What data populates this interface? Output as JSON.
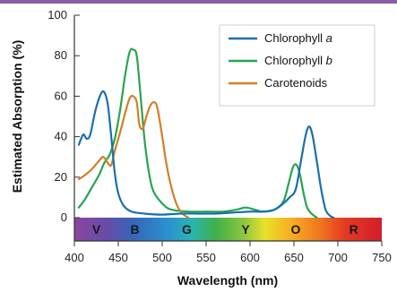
{
  "chart_data": {
    "type": "line",
    "title": "",
    "xlabel": "Wavelength (nm)",
    "ylabel": "Estimated Absorption (%)",
    "xlim": [
      400,
      750
    ],
    "ylim": [
      0,
      100
    ],
    "x_ticks": [
      400,
      450,
      500,
      550,
      600,
      650,
      700,
      750
    ],
    "y_ticks": [
      0,
      20,
      40,
      60,
      80,
      100
    ],
    "grid": false,
    "legend_position": "top-right",
    "spectrum_letters": [
      {
        "letter": "V",
        "nm": 425
      },
      {
        "letter": "B",
        "nm": 469
      },
      {
        "letter": "G",
        "nm": 528
      },
      {
        "letter": "Y",
        "nm": 595
      },
      {
        "letter": "O",
        "nm": 652
      },
      {
        "letter": "R",
        "nm": 718
      }
    ],
    "series": [
      {
        "name": "Chlorophyll a",
        "name_main": "Chlorophyll ",
        "name_italic": "a",
        "color": "#1a6fb0",
        "points": [
          [
            405,
            36
          ],
          [
            410,
            41
          ],
          [
            414,
            39
          ],
          [
            418,
            41
          ],
          [
            424,
            53
          ],
          [
            430,
            61
          ],
          [
            434,
            62
          ],
          [
            438,
            56
          ],
          [
            442,
            40
          ],
          [
            446,
            22
          ],
          [
            450,
            12
          ],
          [
            456,
            6
          ],
          [
            465,
            3
          ],
          [
            480,
            2
          ],
          [
            500,
            1.5
          ],
          [
            520,
            2
          ],
          [
            540,
            2
          ],
          [
            560,
            2
          ],
          [
            580,
            2.5
          ],
          [
            600,
            3
          ],
          [
            615,
            3
          ],
          [
            628,
            4
          ],
          [
            638,
            7
          ],
          [
            645,
            10
          ],
          [
            652,
            14
          ],
          [
            658,
            28
          ],
          [
            663,
            40
          ],
          [
            667,
            45
          ],
          [
            671,
            41
          ],
          [
            676,
            28
          ],
          [
            681,
            14
          ],
          [
            686,
            4
          ],
          [
            691,
            1
          ],
          [
            695,
            0
          ]
        ]
      },
      {
        "name": "Chlorophyll b",
        "name_main": "Chlorophyll ",
        "name_italic": "b",
        "color": "#27a550",
        "points": [
          [
            405,
            5
          ],
          [
            412,
            9
          ],
          [
            420,
            15
          ],
          [
            428,
            21
          ],
          [
            434,
            27
          ],
          [
            440,
            31
          ],
          [
            446,
            39
          ],
          [
            452,
            53
          ],
          [
            458,
            71
          ],
          [
            463,
            82
          ],
          [
            467,
            83
          ],
          [
            471,
            80
          ],
          [
            475,
            62
          ],
          [
            480,
            38
          ],
          [
            485,
            22
          ],
          [
            490,
            13
          ],
          [
            500,
            7
          ],
          [
            510,
            4
          ],
          [
            530,
            3
          ],
          [
            550,
            3
          ],
          [
            570,
            3
          ],
          [
            585,
            4
          ],
          [
            595,
            5
          ],
          [
            605,
            4
          ],
          [
            615,
            3
          ],
          [
            628,
            4
          ],
          [
            638,
            8
          ],
          [
            644,
            17
          ],
          [
            649,
            25
          ],
          [
            653,
            26
          ],
          [
            657,
            21
          ],
          [
            661,
            12
          ],
          [
            665,
            5
          ],
          [
            670,
            2
          ],
          [
            676,
            0
          ]
        ]
      },
      {
        "name": "Carotenoids",
        "name_main": "Carotenoids",
        "name_italic": "",
        "color": "#d27f25",
        "points": [
          [
            405,
            19
          ],
          [
            412,
            21
          ],
          [
            420,
            24
          ],
          [
            428,
            28
          ],
          [
            433,
            30
          ],
          [
            438,
            27
          ],
          [
            442,
            26
          ],
          [
            446,
            33
          ],
          [
            452,
            42
          ],
          [
            458,
            52
          ],
          [
            463,
            59
          ],
          [
            467,
            60
          ],
          [
            471,
            57
          ],
          [
            474,
            46
          ],
          [
            478,
            44
          ],
          [
            482,
            50
          ],
          [
            486,
            55
          ],
          [
            490,
            57
          ],
          [
            494,
            55
          ],
          [
            499,
            43
          ],
          [
            505,
            26
          ],
          [
            511,
            14
          ],
          [
            517,
            6
          ],
          [
            523,
            2
          ],
          [
            530,
            0
          ]
        ]
      }
    ]
  }
}
